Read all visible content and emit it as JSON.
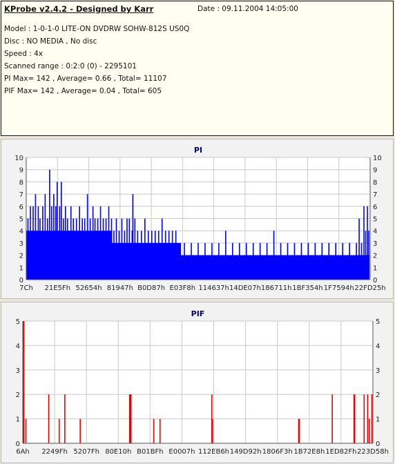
{
  "info": {
    "title": "KProbe v2.4.2 - Designed by Karr",
    "date": "Date : 09.11.2004 14:05:00",
    "lines": [
      "Model : 1-0-1-0 LITE-ON DVDRW SOHW-812S  US0Q",
      "Disc : NO MEDIA , No disc",
      "Speed : 4x",
      "Scanned range : 0:2:0 (0) - 2295101",
      "PI Max= 142 , Average= 0.66 , Total= 11107",
      "PIF Max= 142 , Average= 0.04 , Total= 605"
    ]
  },
  "colors": {
    "pi_series": "#0000ff",
    "pif_series": "#ee0000",
    "grid": "#c8c8c8",
    "plot_bg": "#ffffff"
  },
  "chart_data": [
    {
      "type": "bar",
      "title": "PI",
      "ylim": [
        0,
        10
      ],
      "yticks": [
        0,
        1,
        2,
        3,
        4,
        5,
        6,
        7,
        8,
        9,
        10
      ],
      "xlim": [
        0,
        1
      ],
      "x_tick_labels": [
        "7Ch",
        "21E5Fh",
        "52654h",
        "81947h",
        "B0D87h",
        "E03F8h",
        "114637h",
        "14DE07h",
        "186711h",
        "1BF354h",
        "1F7594h",
        "22FD25h"
      ],
      "grid": true,
      "note": "x given as fraction of scanned range; dense per-sample columns approximated",
      "base_profile": [
        {
          "x": 0.0,
          "y": 4
        },
        {
          "x": 0.24,
          "y": 4
        },
        {
          "x": 0.25,
          "y": 3
        },
        {
          "x": 0.44,
          "y": 3
        },
        {
          "x": 0.45,
          "y": 2
        },
        {
          "x": 0.998,
          "y": 2
        }
      ],
      "spikes": [
        {
          "x": 0.005,
          "y": 5
        },
        {
          "x": 0.012,
          "y": 6
        },
        {
          "x": 0.02,
          "y": 6
        },
        {
          "x": 0.027,
          "y": 7
        },
        {
          "x": 0.035,
          "y": 6
        },
        {
          "x": 0.04,
          "y": 5
        },
        {
          "x": 0.048,
          "y": 6
        },
        {
          "x": 0.055,
          "y": 7
        },
        {
          "x": 0.062,
          "y": 5
        },
        {
          "x": 0.068,
          "y": 9
        },
        {
          "x": 0.074,
          "y": 6
        },
        {
          "x": 0.08,
          "y": 7
        },
        {
          "x": 0.086,
          "y": 6
        },
        {
          "x": 0.09,
          "y": 8
        },
        {
          "x": 0.097,
          "y": 6
        },
        {
          "x": 0.102,
          "y": 8
        },
        {
          "x": 0.108,
          "y": 5
        },
        {
          "x": 0.114,
          "y": 6
        },
        {
          "x": 0.12,
          "y": 5
        },
        {
          "x": 0.13,
          "y": 6
        },
        {
          "x": 0.137,
          "y": 5
        },
        {
          "x": 0.146,
          "y": 5
        },
        {
          "x": 0.155,
          "y": 6
        },
        {
          "x": 0.163,
          "y": 5
        },
        {
          "x": 0.17,
          "y": 5
        },
        {
          "x": 0.178,
          "y": 7
        },
        {
          "x": 0.186,
          "y": 5
        },
        {
          "x": 0.194,
          "y": 6
        },
        {
          "x": 0.2,
          "y": 5
        },
        {
          "x": 0.208,
          "y": 5
        },
        {
          "x": 0.216,
          "y": 6
        },
        {
          "x": 0.224,
          "y": 5
        },
        {
          "x": 0.232,
          "y": 5
        },
        {
          "x": 0.24,
          "y": 6
        },
        {
          "x": 0.248,
          "y": 5
        },
        {
          "x": 0.255,
          "y": 4
        },
        {
          "x": 0.262,
          "y": 5
        },
        {
          "x": 0.27,
          "y": 4
        },
        {
          "x": 0.278,
          "y": 5
        },
        {
          "x": 0.286,
          "y": 4
        },
        {
          "x": 0.293,
          "y": 5
        },
        {
          "x": 0.3,
          "y": 5
        },
        {
          "x": 0.308,
          "y": 4
        },
        {
          "x": 0.316,
          "y": 5
        },
        {
          "x": 0.324,
          "y": 4
        },
        {
          "x": 0.31,
          "y": 7
        },
        {
          "x": 0.335,
          "y": 4
        },
        {
          "x": 0.345,
          "y": 5
        },
        {
          "x": 0.355,
          "y": 4
        },
        {
          "x": 0.365,
          "y": 4
        },
        {
          "x": 0.375,
          "y": 4
        },
        {
          "x": 0.385,
          "y": 4
        },
        {
          "x": 0.395,
          "y": 5
        },
        {
          "x": 0.405,
          "y": 4
        },
        {
          "x": 0.415,
          "y": 4
        },
        {
          "x": 0.425,
          "y": 4
        },
        {
          "x": 0.435,
          "y": 4
        },
        {
          "x": 0.46,
          "y": 3
        },
        {
          "x": 0.48,
          "y": 3
        },
        {
          "x": 0.5,
          "y": 3
        },
        {
          "x": 0.52,
          "y": 3
        },
        {
          "x": 0.54,
          "y": 3
        },
        {
          "x": 0.56,
          "y": 3
        },
        {
          "x": 0.58,
          "y": 4
        },
        {
          "x": 0.6,
          "y": 3
        },
        {
          "x": 0.62,
          "y": 3
        },
        {
          "x": 0.64,
          "y": 3
        },
        {
          "x": 0.66,
          "y": 3
        },
        {
          "x": 0.68,
          "y": 3
        },
        {
          "x": 0.7,
          "y": 3
        },
        {
          "x": 0.72,
          "y": 4
        },
        {
          "x": 0.74,
          "y": 3
        },
        {
          "x": 0.76,
          "y": 3
        },
        {
          "x": 0.78,
          "y": 3
        },
        {
          "x": 0.8,
          "y": 3
        },
        {
          "x": 0.82,
          "y": 3
        },
        {
          "x": 0.84,
          "y": 3
        },
        {
          "x": 0.86,
          "y": 3
        },
        {
          "x": 0.88,
          "y": 3
        },
        {
          "x": 0.9,
          "y": 3
        },
        {
          "x": 0.92,
          "y": 3
        },
        {
          "x": 0.94,
          "y": 3
        },
        {
          "x": 0.96,
          "y": 3
        },
        {
          "x": 0.968,
          "y": 5
        },
        {
          "x": 0.975,
          "y": 3
        },
        {
          "x": 0.982,
          "y": 6
        },
        {
          "x": 0.987,
          "y": 4
        },
        {
          "x": 0.992,
          "y": 6
        },
        {
          "x": 0.996,
          "y": 4
        }
      ]
    },
    {
      "type": "bar",
      "title": "PIF",
      "ylim": [
        0,
        5
      ],
      "yticks": [
        0,
        1,
        2,
        3,
        4,
        5
      ],
      "xlim": [
        0,
        1
      ],
      "x_tick_labels": [
        "6Ah",
        "2249Fh",
        "5207Fh",
        "80E10h",
        "B01BFh",
        "E0007h",
        "112EB6h",
        "149D92h",
        "1806F3h",
        "1B72E8h",
        "1ED82Fh",
        "223D58h"
      ],
      "grid": true,
      "note": "x given as fraction of scanned range",
      "spikes": [
        {
          "x": 0.001,
          "y": 5
        },
        {
          "x": 0.003,
          "y": 5
        },
        {
          "x": 0.009,
          "y": 1
        },
        {
          "x": 0.074,
          "y": 2
        },
        {
          "x": 0.104,
          "y": 1
        },
        {
          "x": 0.12,
          "y": 2
        },
        {
          "x": 0.164,
          "y": 1
        },
        {
          "x": 0.305,
          "y": 2
        },
        {
          "x": 0.307,
          "y": 2
        },
        {
          "x": 0.309,
          "y": 2
        },
        {
          "x": 0.374,
          "y": 1
        },
        {
          "x": 0.392,
          "y": 1
        },
        {
          "x": 0.54,
          "y": 2
        },
        {
          "x": 0.542,
          "y": 1
        },
        {
          "x": 0.788,
          "y": 1
        },
        {
          "x": 0.79,
          "y": 1
        },
        {
          "x": 0.884,
          "y": 2
        },
        {
          "x": 0.946,
          "y": 2
        },
        {
          "x": 0.948,
          "y": 2
        },
        {
          "x": 0.975,
          "y": 2
        },
        {
          "x": 0.985,
          "y": 2
        },
        {
          "x": 0.99,
          "y": 1
        },
        {
          "x": 0.997,
          "y": 2
        }
      ]
    }
  ]
}
